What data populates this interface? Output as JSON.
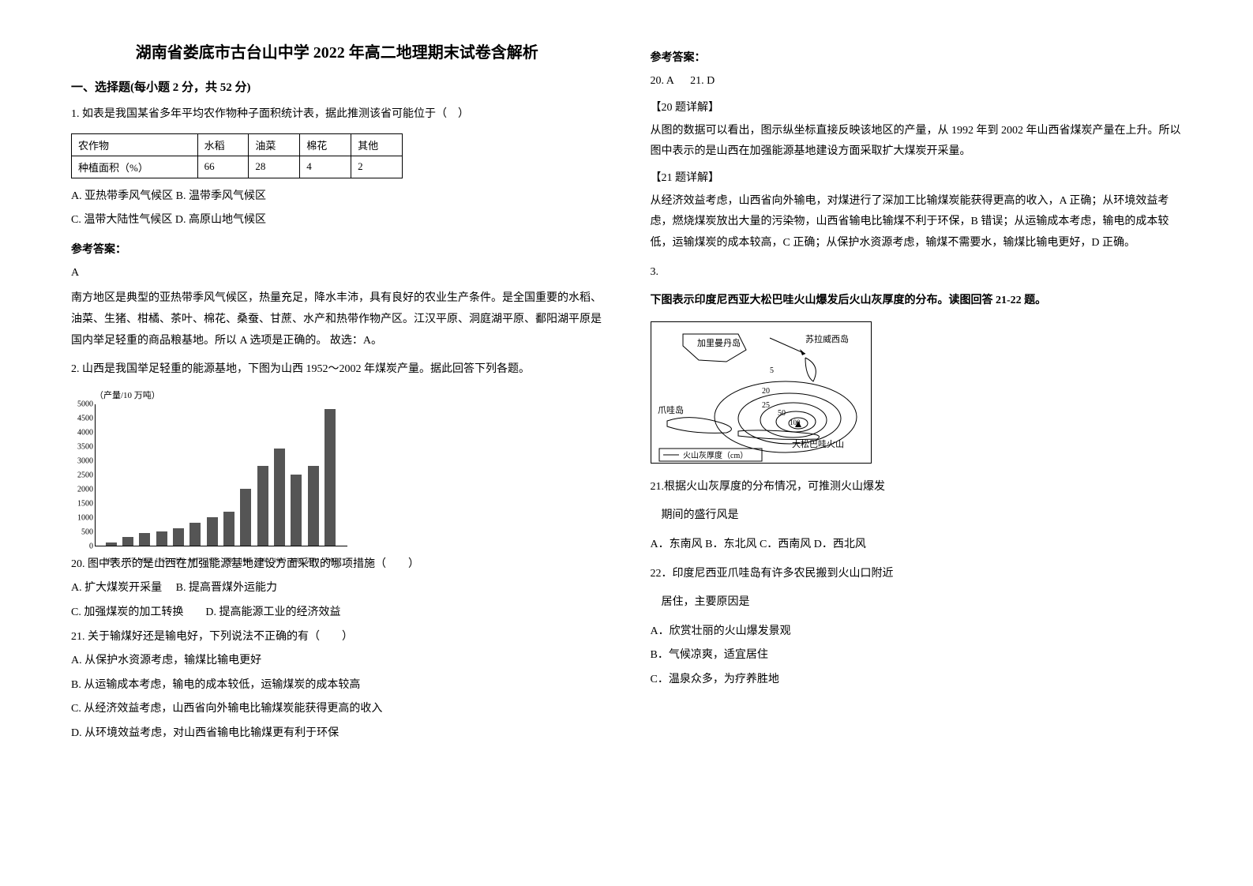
{
  "title": "湖南省娄底市古台山中学 2022 年高二地理期末试卷含解析",
  "section1_title": "一、选择题(每小题 2 分，共 52 分)",
  "q1": {
    "stem": "1. 如表是我国某省多年平均农作物种子面积统计表，据此推测该省可能位于（　）",
    "table": {
      "headers": [
        "农作物",
        "水稻",
        "油菜",
        "棉花",
        "其他"
      ],
      "row_label": "种植面积（%）",
      "values": [
        "66",
        "28",
        "4",
        "2"
      ]
    },
    "optA": "A. 亚热带季风气候区 B. 温带季风气候区",
    "optC": "C. 温带大陆性气候区 D. 高原山地气候区",
    "answer_label": "参考答案：",
    "answer": "A",
    "explain": "南方地区是典型的亚热带季风气候区，热量充足，降水丰沛，具有良好的农业生产条件。是全国重要的水稻、油菜、生猪、柑橘、茶叶、棉花、桑蚕、甘蔗、水产和热带作物产区。江汉平原、洞庭湖平原、鄱阳湖平原是国内举足轻重的商品粮基地。所以 A 选项是正确的。 故选：A。"
  },
  "q2": {
    "stem": "2. 山西是我国举足轻重的能源基地，下图为山西 1952～2002 年煤炭产量。据此回答下列各题。",
    "chart": {
      "type": "bar",
      "caption": "（产量/10 万吨）",
      "ylim": [
        0,
        5000
      ],
      "ytick_step": 500,
      "yticks": [
        0,
        500,
        1000,
        1500,
        2000,
        2500,
        3000,
        3500,
        4000,
        4500,
        5000
      ],
      "years": [
        "1952",
        "1957",
        "1962",
        "1965",
        "1970",
        "1975",
        "1978",
        "1980",
        "1985",
        "1990",
        "1995",
        "2000",
        "2001",
        "2002"
      ],
      "values": [
        100,
        300,
        450,
        500,
        600,
        800,
        1000,
        1200,
        2000,
        2800,
        3400,
        2500,
        2800,
        4800
      ],
      "bar_color": "#555555",
      "bg_color": "#ffffff",
      "axis_color": "#000000"
    },
    "sub20": "20. 图中表示的是山西在加强能源基地建设方面采取的哪项措施（　　）",
    "sub20_optA": "A. 扩大煤炭开采量　 B. 提高晋煤外运能力",
    "sub20_optC": "C. 加强煤炭的加工转换　　D. 提高能源工业的经济效益",
    "sub21": "21. 关于输煤好还是输电好，下列说法不正确的有（　　）",
    "sub21_A": "A. 从保护水资源考虑，输煤比输电更好",
    "sub21_B": "B. 从运输成本考虑，输电的成本较低，运输煤炭的成本较高",
    "sub21_C": "C. 从经济效益考虑，山西省向外输电比输煤炭能获得更高的收入",
    "sub21_D": "D. 从环境效益考虑，对山西省输电比输煤更有利于环保"
  },
  "col2": {
    "answer_label": "参考答案：",
    "ans20": "20. A",
    "ans21": "21. D",
    "exp20_title": "【20 题详解】",
    "exp20": "从图的数据可以看出，图示纵坐标直接反映该地区的产量，从 1992 年到 2002 年山西省煤炭产量在上升。所以图中表示的是山西在加强能源基地建设方面采取扩大煤炭开采量。",
    "exp21_title": "【21 题详解】",
    "exp21": "从经济效益考虑，山西省向外输电，对煤进行了深加工比输煤炭能获得更高的收入，A 正确；从环境效益考虑，燃烧煤炭放出大量的污染物，山西省输电比输煤不利于环保，B 错误；从运输成本考虑，输电的成本较低，运输煤炭的成本较高，C 正确；从保护水资源考虑，输煤不需要水，输煤比输电更好，D 正确。",
    "q3num": "3.",
    "q3stem": "下图表示印度尼西亚大松巴哇火山爆发后火山灰厚度的分布。读图回答 21-22 题。",
    "map": {
      "label_kalimantan": "加里曼丹岛",
      "label_sulawesi": "苏拉威西岛",
      "label_java": "爪哇岛",
      "label_volcano": "大松巴哇火山",
      "legend": "火山灰厚度（cm）",
      "contours": [
        "5",
        "20",
        "25",
        "50",
        "100"
      ],
      "line_color": "#000000",
      "bg_color": "#ffffff"
    },
    "sub21_map": "21.根据火山灰厚度的分布情况，可推测火山爆发",
    "sub21_map2": "期间的盛行风是",
    "sub21_opts": "A．东南风 B．东北风 C．西南风 D．西北风",
    "sub22": "22．印度尼西亚爪哇岛有许多农民搬到火山口附近",
    "sub22_2": "居住，主要原因是",
    "sub22_A": "A．欣赏壮丽的火山爆发景观",
    "sub22_B": "B．气候凉爽，适宜居住",
    "sub22_C": "C．温泉众多，为疗养胜地"
  }
}
